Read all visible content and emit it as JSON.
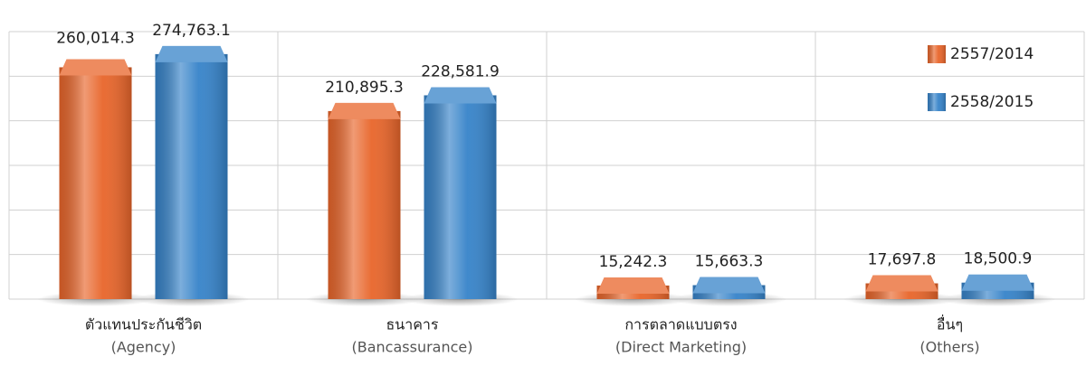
{
  "chart_data": {
    "type": "bar",
    "categories": [
      "ตัวแทนประกันชีวิต",
      "ธนาคาร",
      "การตลาดแบบตรง",
      "อื่นๆ"
    ],
    "category_subtitles": [
      "(Agency)",
      "(Bancassurance)",
      "(Direct Marketing)",
      "(Others)"
    ],
    "series": [
      {
        "name": "2557/2014",
        "color": "#e8652a",
        "values": [
          260014.3,
          210895.3,
          15242.3,
          17697.8
        ],
        "value_labels": [
          "260,014.3",
          "210,895.3",
          "15,242.3",
          "17,697.8"
        ]
      },
      {
        "name": "2558/2015",
        "color": "#3683c9",
        "values": [
          274763.1,
          228581.9,
          15663.3,
          18500.9
        ],
        "value_labels": [
          "274,763.1",
          "228,581.9",
          "15,663.3",
          "18,500.9"
        ]
      }
    ],
    "ylim": [
      0,
      300000
    ],
    "yticks": [
      0,
      50000,
      100000,
      150000,
      200000,
      250000,
      300000
    ],
    "grid": true,
    "legend": "top-right"
  }
}
